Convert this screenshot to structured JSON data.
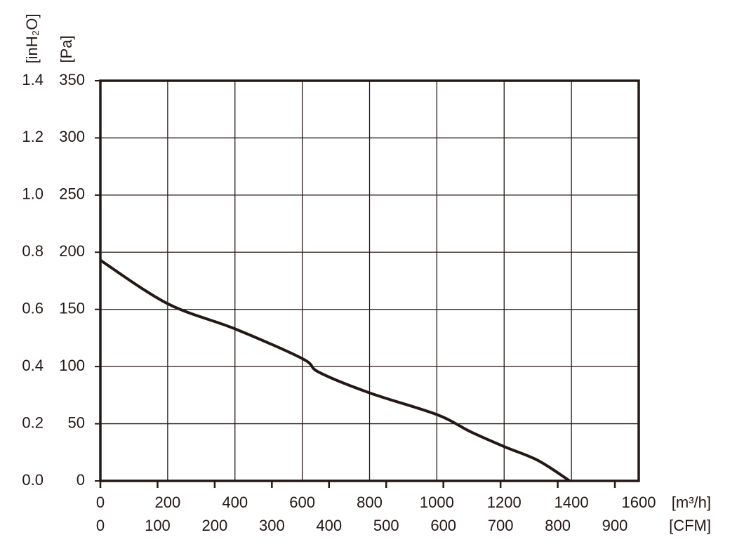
{
  "chart_data": {
    "type": "line",
    "x_label": "[m³/h]",
    "x2_label": "[CFM]",
    "y_label": "[Pa]",
    "y2_label": "[inH₂O]",
    "x": [
      0,
      200,
      400,
      600,
      650,
      800,
      1000,
      1100,
      1200,
      1300,
      1395
    ],
    "series": [
      {
        "color": "#231815",
        "values": [
          193,
          155,
          133,
          107,
          95,
          77,
          58,
          43,
          30,
          18,
          0
        ]
      }
    ],
    "xlim": [
      0,
      1600
    ],
    "xticks": [
      0,
      200,
      400,
      600,
      800,
      1000,
      1200,
      1400,
      1600
    ],
    "x2lim": [
      0,
      941.7
    ],
    "x2ticks": [
      0,
      100,
      200,
      300,
      400,
      500,
      600,
      700,
      800,
      900
    ],
    "ylim": [
      0,
      350
    ],
    "yticks": [
      0,
      50,
      100,
      150,
      200,
      250,
      300,
      350
    ],
    "y2lim": [
      0,
      1.4
    ],
    "y2ticks": [
      {
        "value": 0,
        "label": "0.0"
      },
      0.2,
      0.4,
      0.6,
      0.8,
      {
        "value": 1,
        "label": "1.0"
      },
      1.2,
      1.4
    ],
    "grid": true
  }
}
